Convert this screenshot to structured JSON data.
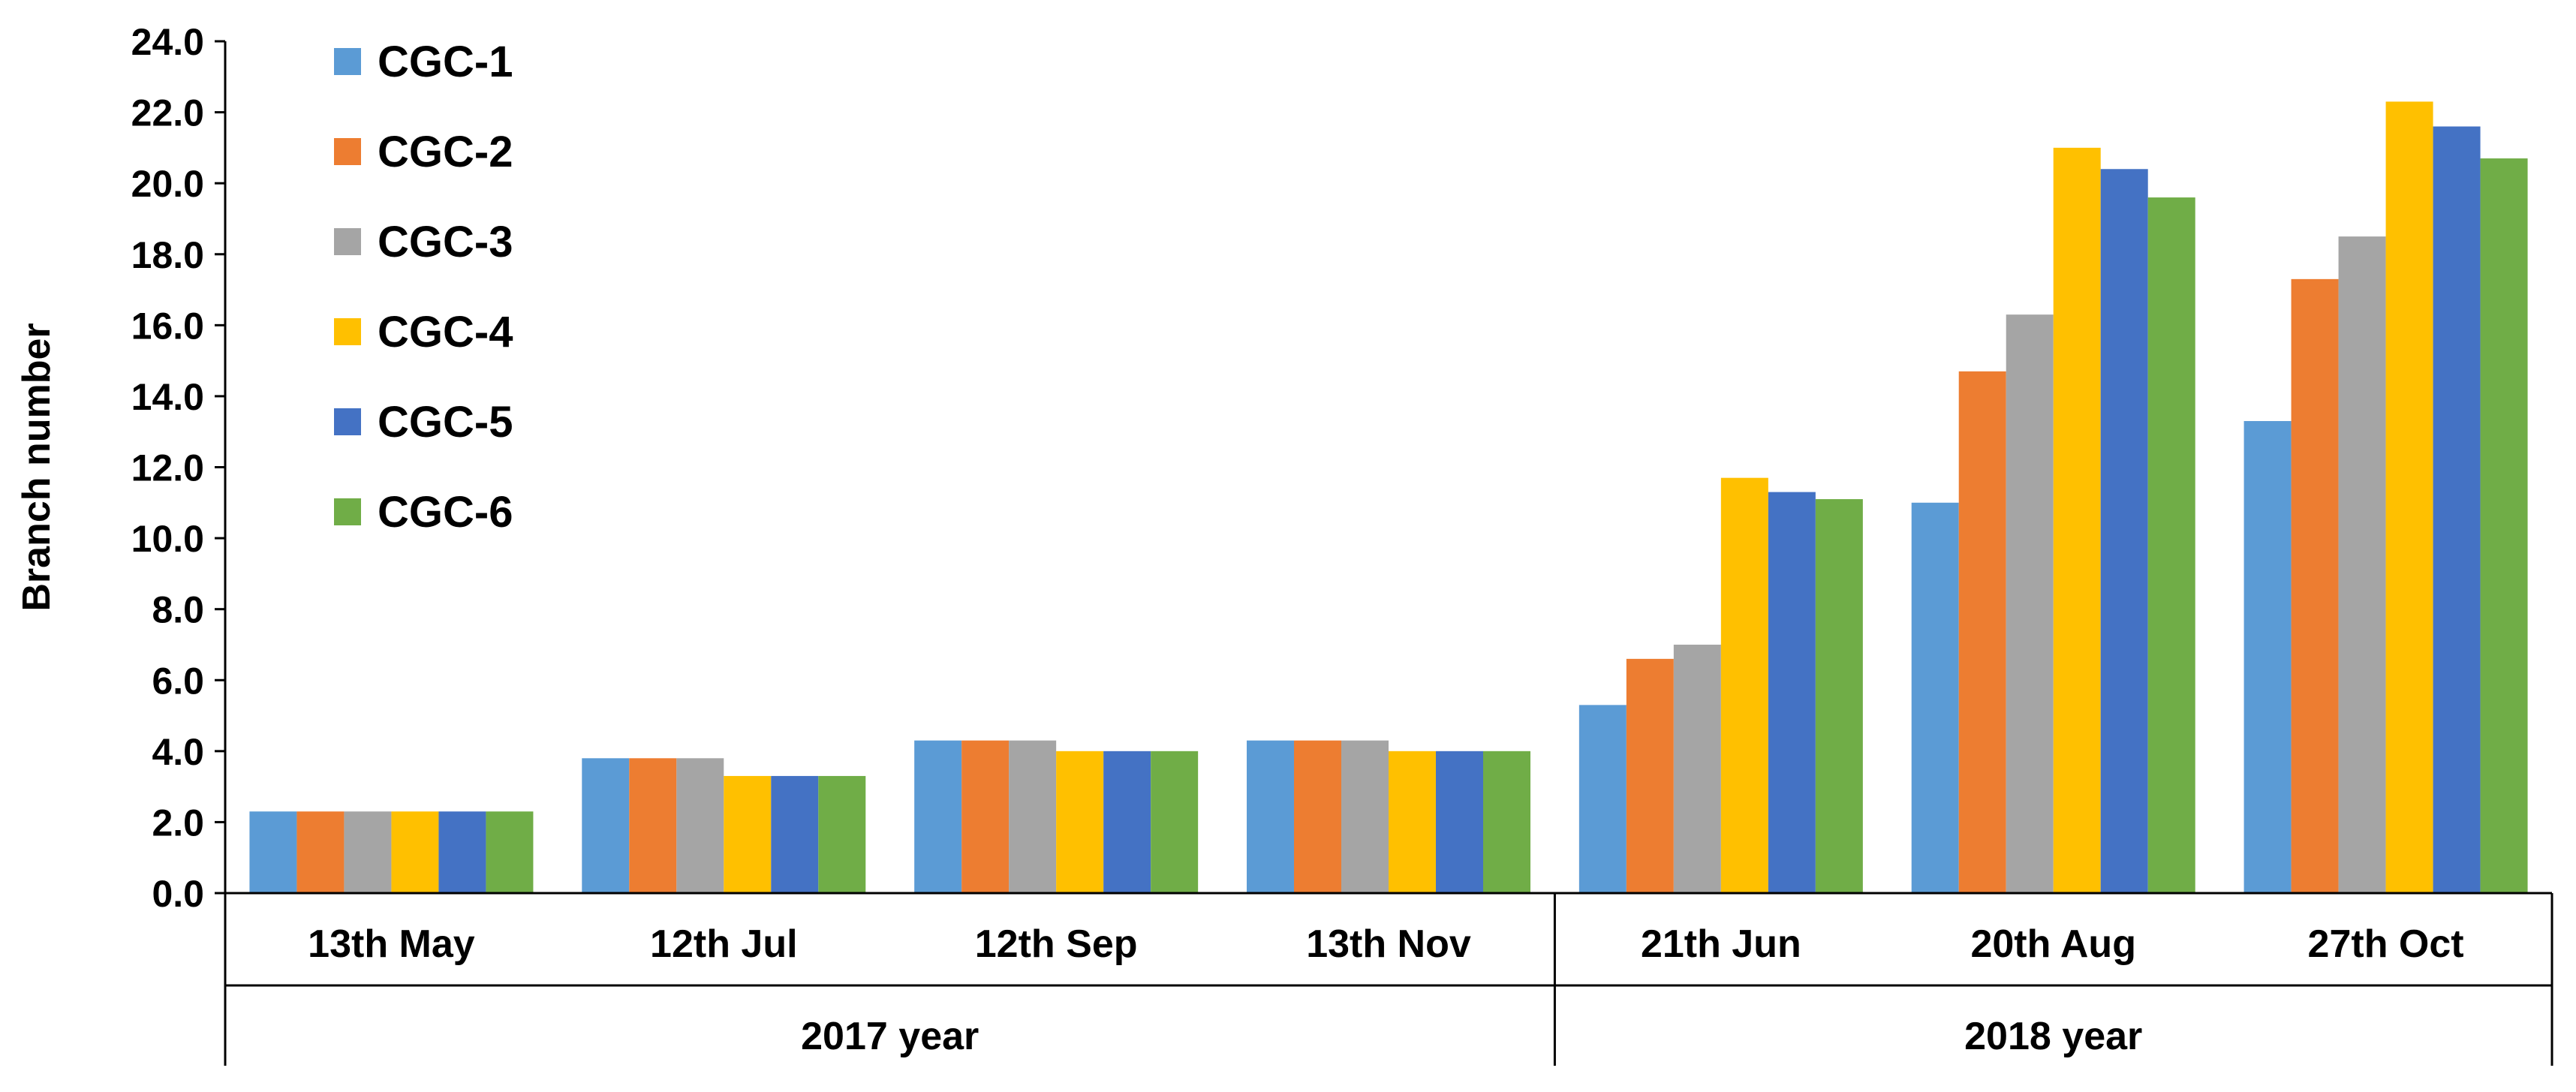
{
  "chart_data": {
    "type": "bar",
    "title": "",
    "xlabel": "",
    "ylabel": "Branch number",
    "ylim": [
      0,
      24
    ],
    "yticks": [
      "0.0",
      "2.0",
      "4.0",
      "6.0",
      "8.0",
      "10.0",
      "12.0",
      "14.0",
      "16.0",
      "18.0",
      "20.0",
      "22.0",
      "24.0"
    ],
    "grid": false,
    "legend_position": "top-left",
    "categories": [
      "13th May",
      "12th Jul",
      "12th Sep",
      "13th Nov",
      "21th Jun",
      "20th Aug",
      "27th Oct"
    ],
    "groups": [
      {
        "label": "2017 year",
        "categories": [
          "13th May",
          "12th Jul",
          "12th Sep",
          "13th Nov"
        ]
      },
      {
        "label": "2018 year",
        "categories": [
          "21th Jun",
          "20th Aug",
          "27th Oct"
        ]
      }
    ],
    "series": [
      {
        "name": "CGC-1",
        "color": "#5B9BD5",
        "values": [
          2.3,
          3.8,
          4.3,
          4.3,
          5.3,
          11.0,
          13.3
        ]
      },
      {
        "name": "CGC-2",
        "color": "#ED7D31",
        "values": [
          2.3,
          3.8,
          4.3,
          4.3,
          6.6,
          14.7,
          17.3
        ]
      },
      {
        "name": "CGC-3",
        "color": "#A5A5A5",
        "values": [
          2.3,
          3.8,
          4.3,
          4.3,
          7.0,
          16.3,
          18.5
        ]
      },
      {
        "name": "CGC-4",
        "color": "#FFC000",
        "values": [
          2.3,
          3.3,
          4.0,
          4.0,
          11.7,
          21.0,
          22.3
        ]
      },
      {
        "name": "CGC-5",
        "color": "#4472C4",
        "values": [
          2.3,
          3.3,
          4.0,
          4.0,
          11.3,
          20.4,
          21.6
        ]
      },
      {
        "name": "CGC-6",
        "color": "#70AD47",
        "values": [
          2.3,
          3.3,
          4.0,
          4.0,
          11.1,
          19.6,
          20.7
        ]
      }
    ]
  }
}
